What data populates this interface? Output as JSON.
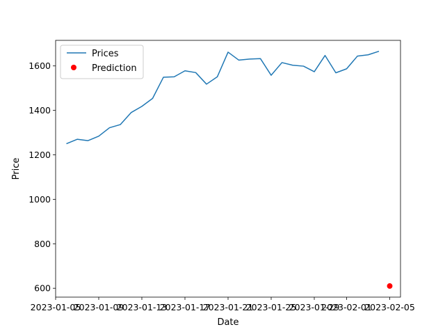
{
  "chart_data": {
    "type": "line",
    "xlabel": "Date",
    "ylabel": "Price",
    "x_tick_labels": [
      "2023-01-05",
      "2023-01-09",
      "2023-01-13",
      "2023-01-17",
      "2023-01-21",
      "2023-01-25",
      "2023-01-29",
      "2023-02-01",
      "2023-02-05"
    ],
    "x_tick_dates": [
      "2023-01-05",
      "2023-01-09",
      "2023-01-13",
      "2023-01-17",
      "2023-01-21",
      "2023-01-25",
      "2023-01-29",
      "2023-02-01",
      "2023-02-05"
    ],
    "y_ticks": [
      600,
      800,
      1000,
      1200,
      1400,
      1600
    ],
    "xlim": [
      "2023-01-05",
      "2023-02-06"
    ],
    "ylim": [
      560,
      1715
    ],
    "legend": {
      "placement": "upper-left"
    },
    "grid": false,
    "series": [
      {
        "name": "Prices",
        "kind": "line",
        "color": "#1f77b4",
        "x": [
          "2023-01-06",
          "2023-01-07",
          "2023-01-08",
          "2023-01-09",
          "2023-01-10",
          "2023-01-11",
          "2023-01-12",
          "2023-01-13",
          "2023-01-14",
          "2023-01-15",
          "2023-01-16",
          "2023-01-17",
          "2023-01-18",
          "2023-01-19",
          "2023-01-20",
          "2023-01-21",
          "2023-01-22",
          "2023-01-23",
          "2023-01-24",
          "2023-01-25",
          "2023-01-26",
          "2023-01-27",
          "2023-01-28",
          "2023-01-29",
          "2023-01-30",
          "2023-01-31",
          "2023-02-01",
          "2023-02-02",
          "2023-02-03",
          "2023-02-04"
        ],
        "values": [
          1250,
          1270,
          1264,
          1284,
          1322,
          1336,
          1390,
          1418,
          1454,
          1549,
          1551,
          1578,
          1570,
          1518,
          1551,
          1662,
          1626,
          1631,
          1633,
          1558,
          1615,
          1603,
          1599,
          1574,
          1647,
          1569,
          1587,
          1644,
          1650,
          1666
        ]
      },
      {
        "name": "Prediction",
        "kind": "scatter",
        "color": "#ff0000",
        "x": [
          "2023-02-05"
        ],
        "values": [
          610
        ]
      }
    ]
  }
}
